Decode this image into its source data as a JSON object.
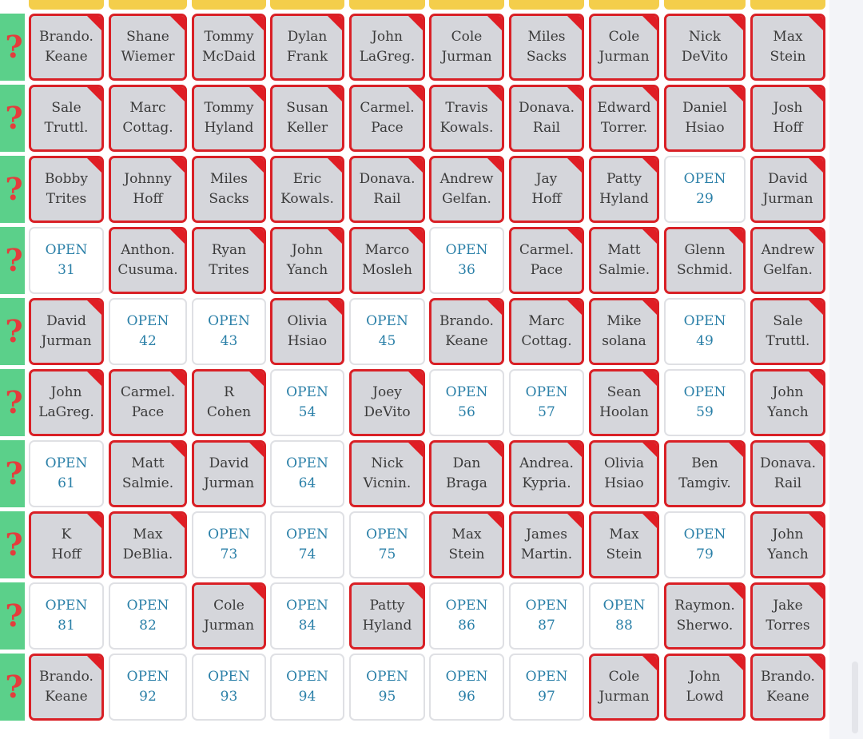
{
  "row_marker_symbol": "?",
  "colors": {
    "taken_fill": "#d5d6db",
    "taken_border": "#d92026",
    "open_text": "#2b80a8",
    "row_marker_bg": "#5bd08a",
    "row_marker_symbol": "#e43c3c",
    "header_bar": "#f4ce4b"
  },
  "grid": {
    "rows": [
      {
        "cells": [
          {
            "line1": "Brando.",
            "line2": "Keane",
            "status": "taken"
          },
          {
            "line1": "Shane",
            "line2": "Wiemer",
            "status": "taken"
          },
          {
            "line1": "Tommy",
            "line2": "McDaid",
            "status": "taken"
          },
          {
            "line1": "Dylan",
            "line2": "Frank",
            "status": "taken"
          },
          {
            "line1": "John",
            "line2": "LaGreg.",
            "status": "taken"
          },
          {
            "line1": "Cole",
            "line2": "Jurman",
            "status": "taken"
          },
          {
            "line1": "Miles",
            "line2": "Sacks",
            "status": "taken"
          },
          {
            "line1": "Cole",
            "line2": "Jurman",
            "status": "taken"
          },
          {
            "line1": "Nick",
            "line2": "DeVito",
            "status": "taken"
          },
          {
            "line1": "Max",
            "line2": "Stein",
            "status": "taken"
          }
        ]
      },
      {
        "cells": [
          {
            "line1": "Sale",
            "line2": "Truttl.",
            "status": "taken"
          },
          {
            "line1": "Marc",
            "line2": "Cottag.",
            "status": "taken"
          },
          {
            "line1": "Tommy",
            "line2": "Hyland",
            "status": "taken"
          },
          {
            "line1": "Susan",
            "line2": "Keller",
            "status": "taken"
          },
          {
            "line1": "Carmel.",
            "line2": "Pace",
            "status": "taken"
          },
          {
            "line1": "Travis",
            "line2": "Kowals.",
            "status": "taken"
          },
          {
            "line1": "Donava.",
            "line2": "Rail",
            "status": "taken"
          },
          {
            "line1": "Edward",
            "line2": "Torrer.",
            "status": "taken"
          },
          {
            "line1": "Daniel",
            "line2": "Hsiao",
            "status": "taken"
          },
          {
            "line1": "Josh",
            "line2": "Hoff",
            "status": "taken"
          }
        ]
      },
      {
        "cells": [
          {
            "line1": "Bobby",
            "line2": "Trites",
            "status": "taken"
          },
          {
            "line1": "Johnny",
            "line2": "Hoff",
            "status": "taken"
          },
          {
            "line1": "Miles",
            "line2": "Sacks",
            "status": "taken"
          },
          {
            "line1": "Eric",
            "line2": "Kowals.",
            "status": "taken"
          },
          {
            "line1": "Donava.",
            "line2": "Rail",
            "status": "taken"
          },
          {
            "line1": "Andrew",
            "line2": "Gelfan.",
            "status": "taken"
          },
          {
            "line1": "Jay",
            "line2": "Hoff",
            "status": "taken"
          },
          {
            "line1": "Patty",
            "line2": "Hyland",
            "status": "taken"
          },
          {
            "line1": "OPEN",
            "line2": "29",
            "status": "open"
          },
          {
            "line1": "David",
            "line2": "Jurman",
            "status": "taken"
          }
        ]
      },
      {
        "cells": [
          {
            "line1": "OPEN",
            "line2": "31",
            "status": "open"
          },
          {
            "line1": "Anthon.",
            "line2": "Cusuma.",
            "status": "taken"
          },
          {
            "line1": "Ryan",
            "line2": "Trites",
            "status": "taken"
          },
          {
            "line1": "John",
            "line2": "Yanch",
            "status": "taken"
          },
          {
            "line1": "Marco",
            "line2": "Mosleh",
            "status": "taken"
          },
          {
            "line1": "OPEN",
            "line2": "36",
            "status": "open"
          },
          {
            "line1": "Carmel.",
            "line2": "Pace",
            "status": "taken"
          },
          {
            "line1": "Matt",
            "line2": "Salmie.",
            "status": "taken"
          },
          {
            "line1": "Glenn",
            "line2": "Schmid.",
            "status": "taken"
          },
          {
            "line1": "Andrew",
            "line2": "Gelfan.",
            "status": "taken"
          }
        ]
      },
      {
        "cells": [
          {
            "line1": "David",
            "line2": "Jurman",
            "status": "taken"
          },
          {
            "line1": "OPEN",
            "line2": "42",
            "status": "open"
          },
          {
            "line1": "OPEN",
            "line2": "43",
            "status": "open"
          },
          {
            "line1": "Olivia",
            "line2": "Hsiao",
            "status": "taken"
          },
          {
            "line1": "OPEN",
            "line2": "45",
            "status": "open"
          },
          {
            "line1": "Brando.",
            "line2": "Keane",
            "status": "taken"
          },
          {
            "line1": "Marc",
            "line2": "Cottag.",
            "status": "taken"
          },
          {
            "line1": "Mike",
            "line2": "solana",
            "status": "taken"
          },
          {
            "line1": "OPEN",
            "line2": "49",
            "status": "open"
          },
          {
            "line1": "Sale",
            "line2": "Truttl.",
            "status": "taken"
          }
        ]
      },
      {
        "cells": [
          {
            "line1": "John",
            "line2": "LaGreg.",
            "status": "taken"
          },
          {
            "line1": "Carmel.",
            "line2": "Pace",
            "status": "taken"
          },
          {
            "line1": "R",
            "line2": "Cohen",
            "status": "taken"
          },
          {
            "line1": "OPEN",
            "line2": "54",
            "status": "open"
          },
          {
            "line1": "Joey",
            "line2": "DeVito",
            "status": "taken"
          },
          {
            "line1": "OPEN",
            "line2": "56",
            "status": "open"
          },
          {
            "line1": "OPEN",
            "line2": "57",
            "status": "open"
          },
          {
            "line1": "Sean",
            "line2": "Hoolan",
            "status": "taken"
          },
          {
            "line1": "OPEN",
            "line2": "59",
            "status": "open"
          },
          {
            "line1": "John",
            "line2": "Yanch",
            "status": "taken"
          }
        ]
      },
      {
        "cells": [
          {
            "line1": "OPEN",
            "line2": "61",
            "status": "open"
          },
          {
            "line1": "Matt",
            "line2": "Salmie.",
            "status": "taken"
          },
          {
            "line1": "David",
            "line2": "Jurman",
            "status": "taken"
          },
          {
            "line1": "OPEN",
            "line2": "64",
            "status": "open"
          },
          {
            "line1": "Nick",
            "line2": "Vicnin.",
            "status": "taken"
          },
          {
            "line1": "Dan",
            "line2": "Braga",
            "status": "taken"
          },
          {
            "line1": "Andrea.",
            "line2": "Kypria.",
            "status": "taken"
          },
          {
            "line1": "Olivia",
            "line2": "Hsiao",
            "status": "taken"
          },
          {
            "line1": "Ben",
            "line2": "Tamgiv.",
            "status": "taken"
          },
          {
            "line1": "Donava.",
            "line2": "Rail",
            "status": "taken"
          }
        ]
      },
      {
        "cells": [
          {
            "line1": "K",
            "line2": "Hoff",
            "status": "taken"
          },
          {
            "line1": "Max",
            "line2": "DeBlia.",
            "status": "taken"
          },
          {
            "line1": "OPEN",
            "line2": "73",
            "status": "open"
          },
          {
            "line1": "OPEN",
            "line2": "74",
            "status": "open"
          },
          {
            "line1": "OPEN",
            "line2": "75",
            "status": "open"
          },
          {
            "line1": "Max",
            "line2": "Stein",
            "status": "taken"
          },
          {
            "line1": "James",
            "line2": "Martin.",
            "status": "taken"
          },
          {
            "line1": "Max",
            "line2": "Stein",
            "status": "taken"
          },
          {
            "line1": "OPEN",
            "line2": "79",
            "status": "open"
          },
          {
            "line1": "John",
            "line2": "Yanch",
            "status": "taken"
          }
        ]
      },
      {
        "cells": [
          {
            "line1": "OPEN",
            "line2": "81",
            "status": "open"
          },
          {
            "line1": "OPEN",
            "line2": "82",
            "status": "open"
          },
          {
            "line1": "Cole",
            "line2": "Jurman",
            "status": "taken"
          },
          {
            "line1": "OPEN",
            "line2": "84",
            "status": "open"
          },
          {
            "line1": "Patty",
            "line2": "Hyland",
            "status": "taken"
          },
          {
            "line1": "OPEN",
            "line2": "86",
            "status": "open"
          },
          {
            "line1": "OPEN",
            "line2": "87",
            "status": "open"
          },
          {
            "line1": "OPEN",
            "line2": "88",
            "status": "open"
          },
          {
            "line1": "Raymon.",
            "line2": "Sherwo.",
            "status": "taken"
          },
          {
            "line1": "Jake",
            "line2": "Torres",
            "status": "taken"
          }
        ]
      },
      {
        "cells": [
          {
            "line1": "Brando.",
            "line2": "Keane",
            "status": "taken"
          },
          {
            "line1": "OPEN",
            "line2": "92",
            "status": "open"
          },
          {
            "line1": "OPEN",
            "line2": "93",
            "status": "open"
          },
          {
            "line1": "OPEN",
            "line2": "94",
            "status": "open"
          },
          {
            "line1": "OPEN",
            "line2": "95",
            "status": "open"
          },
          {
            "line1": "OPEN",
            "line2": "96",
            "status": "open"
          },
          {
            "line1": "OPEN",
            "line2": "97",
            "status": "open"
          },
          {
            "line1": "Cole",
            "line2": "Jurman",
            "status": "taken"
          },
          {
            "line1": "John",
            "line2": "Lowd",
            "status": "taken"
          },
          {
            "line1": "Brando.",
            "line2": "Keane",
            "status": "taken"
          }
        ]
      }
    ]
  }
}
